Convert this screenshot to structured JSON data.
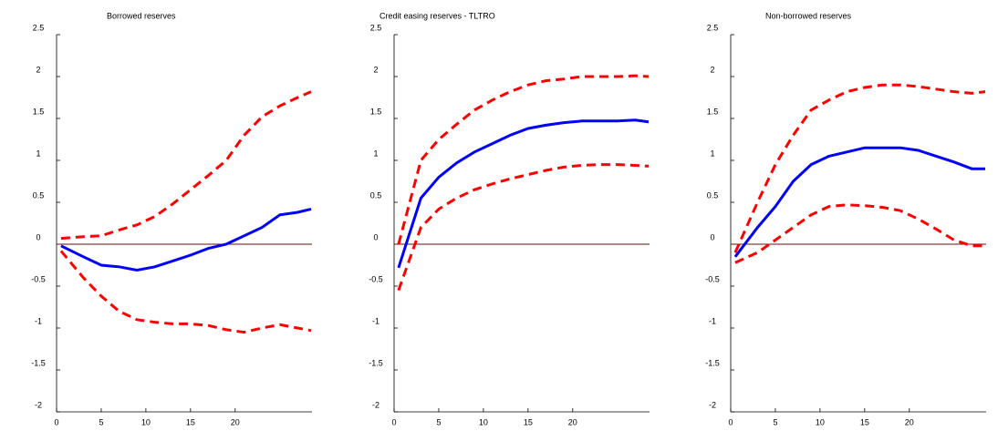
{
  "chart_data": [
    {
      "type": "line",
      "title": "Borrowed reserves",
      "x": [
        0.5,
        3,
        5,
        7,
        9,
        11,
        13,
        15,
        17,
        19,
        21,
        23,
        25,
        27,
        28.5
      ],
      "xlim": [
        0,
        28.6
      ],
      "xticks": [
        0,
        5,
        10,
        15,
        20
      ],
      "ylim": [
        -2,
        2.5
      ],
      "yticks": [
        -2,
        -1.5,
        -1,
        -0.5,
        0,
        0.5,
        1,
        1.5,
        2,
        2.5
      ],
      "series": [
        {
          "color": "#ff0000",
          "dash": true,
          "values": [
            0.07,
            0.09,
            0.1,
            0.17,
            0.23,
            0.33,
            0.48,
            0.65,
            0.82,
            1.0,
            1.3,
            1.52,
            1.65,
            1.75,
            1.82
          ]
        },
        {
          "color": "#0000ff",
          "dash": false,
          "values": [
            -0.02,
            -0.15,
            -0.25,
            -0.27,
            -0.31,
            -0.27,
            -0.2,
            -0.13,
            -0.05,
            0.0,
            0.1,
            0.2,
            0.35,
            0.38,
            0.42
          ]
        },
        {
          "color": "#ff0000",
          "dash": true,
          "values": [
            -0.08,
            -0.4,
            -0.62,
            -0.8,
            -0.9,
            -0.93,
            -0.95,
            -0.95,
            -0.97,
            -1.02,
            -1.05,
            -1.0,
            -0.96,
            -1.0,
            -1.03
          ]
        }
      ]
    },
    {
      "type": "line",
      "title": "Credit easing reserves - TLTRO",
      "x": [
        0.5,
        3,
        5,
        7,
        9,
        11,
        13,
        15,
        17,
        19,
        21,
        23,
        25,
        27,
        28.5
      ],
      "xlim": [
        0,
        28.6
      ],
      "xticks": [
        0,
        5,
        10,
        15,
        20
      ],
      "ylim": [
        -2,
        2.5
      ],
      "yticks": [
        -2,
        -1.5,
        -1,
        -0.5,
        0,
        0.5,
        1,
        1.5,
        2,
        2.5
      ],
      "series": [
        {
          "color": "#ff0000",
          "dash": true,
          "values": [
            0.0,
            1.0,
            1.25,
            1.43,
            1.6,
            1.72,
            1.82,
            1.9,
            1.95,
            1.97,
            2.0,
            2.0,
            2.0,
            2.01,
            2.0
          ]
        },
        {
          "color": "#0000ff",
          "dash": false,
          "values": [
            -0.28,
            0.55,
            0.8,
            0.97,
            1.1,
            1.2,
            1.3,
            1.38,
            1.42,
            1.45,
            1.47,
            1.47,
            1.47,
            1.48,
            1.46
          ]
        },
        {
          "color": "#ff0000",
          "dash": true,
          "values": [
            -0.55,
            0.2,
            0.42,
            0.55,
            0.65,
            0.72,
            0.78,
            0.83,
            0.88,
            0.92,
            0.94,
            0.95,
            0.95,
            0.94,
            0.93
          ]
        }
      ]
    },
    {
      "type": "line",
      "title": "Non-borrowed reserves",
      "x": [
        0.5,
        3,
        5,
        7,
        9,
        11,
        13,
        15,
        17,
        19,
        21,
        23,
        25,
        27,
        28.5
      ],
      "xlim": [
        0,
        28.6
      ],
      "xticks": [
        0,
        5,
        10,
        15,
        20
      ],
      "ylim": [
        -2,
        2.5
      ],
      "yticks": [
        -2,
        -1.5,
        -1,
        -0.5,
        0,
        0.5,
        1,
        1.5,
        2,
        2.5
      ],
      "series": [
        {
          "color": "#ff0000",
          "dash": true,
          "values": [
            -0.1,
            0.5,
            0.95,
            1.3,
            1.6,
            1.72,
            1.82,
            1.87,
            1.9,
            1.9,
            1.88,
            1.85,
            1.82,
            1.8,
            1.82
          ]
        },
        {
          "color": "#0000ff",
          "dash": false,
          "values": [
            -0.15,
            0.2,
            0.45,
            0.75,
            0.95,
            1.05,
            1.1,
            1.15,
            1.15,
            1.15,
            1.12,
            1.05,
            0.98,
            0.9,
            0.9
          ]
        },
        {
          "color": "#ff0000",
          "dash": true,
          "values": [
            -0.22,
            -0.1,
            0.05,
            0.2,
            0.35,
            0.45,
            0.47,
            0.46,
            0.44,
            0.4,
            0.3,
            0.18,
            0.05,
            -0.02,
            -0.02
          ]
        }
      ]
    }
  ]
}
